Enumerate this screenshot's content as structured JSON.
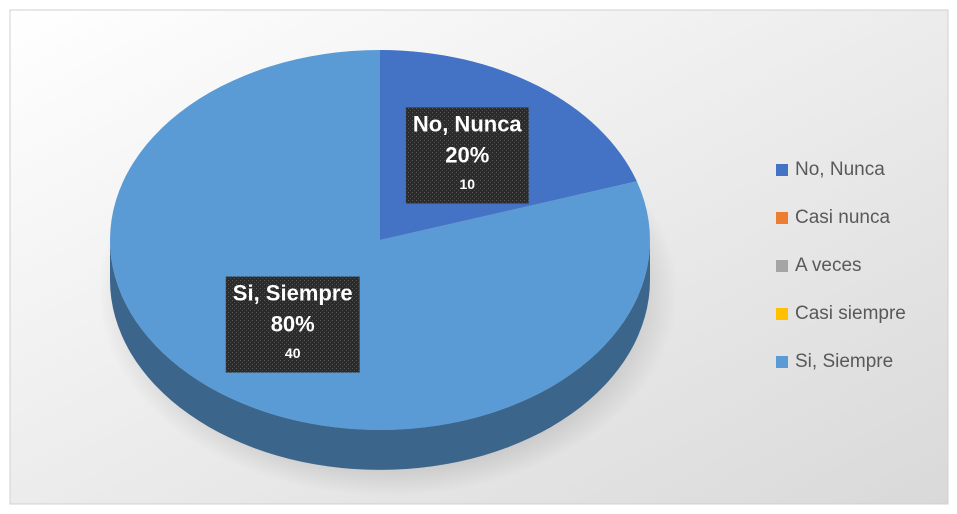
{
  "chart_data": {
    "type": "pie3d",
    "categories": [
      "No, Nunca",
      "Casi nunca",
      "A veces",
      "Casi siempre",
      "Si, Siempre"
    ],
    "values": [
      10,
      0,
      0,
      0,
      40
    ],
    "percent_labels": [
      "20%",
      null,
      null,
      null,
      "80%"
    ],
    "colors": [
      "#4472c4",
      "#ed7d31",
      "#a5a5a5",
      "#ffc000",
      "#5b9bd5"
    ],
    "legend": "right"
  }
}
